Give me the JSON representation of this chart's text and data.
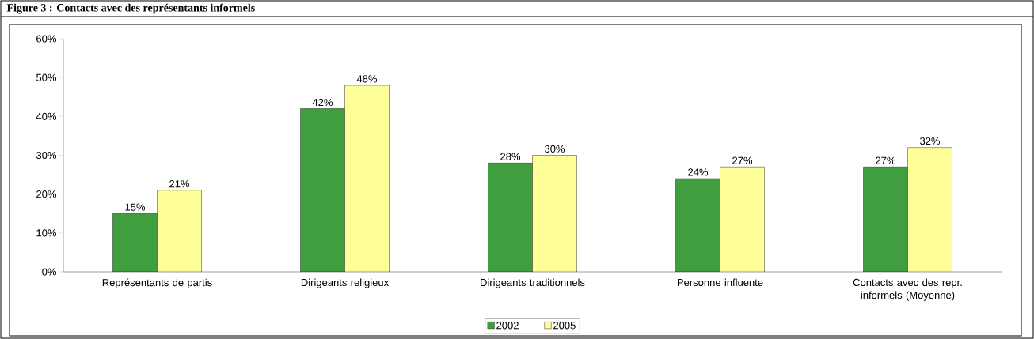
{
  "chart_data": {
    "type": "bar",
    "title": "Figure 3 : Contacts avec des représentants informels",
    "categories": [
      "Représentants de partis",
      "Dirigeants religieux",
      "Dirigeants traditionnels",
      "Personne influente",
      "Contacts avec des repr. informels (Moyenne)"
    ],
    "series": [
      {
        "name": "2002",
        "color": "#3f9f3f",
        "values": [
          15,
          42,
          28,
          24,
          27
        ],
        "value_labels": [
          "15%",
          "42%",
          "28%",
          "24%",
          "27%"
        ]
      },
      {
        "name": "2005",
        "color": "#ffff99",
        "values": [
          21,
          48,
          30,
          27,
          32
        ],
        "value_labels": [
          "21%",
          "48%",
          "30%",
          "27%",
          "32%"
        ]
      }
    ],
    "ylim": [
      0,
      60
    ],
    "yticks": [
      {
        "value": 0,
        "label": "0%"
      },
      {
        "value": 10,
        "label": "10%"
      },
      {
        "value": 20,
        "label": "20%"
      },
      {
        "value": 30,
        "label": "30%"
      },
      {
        "value": 40,
        "label": "40%"
      },
      {
        "value": 50,
        "label": "50%"
      },
      {
        "value": 60,
        "label": "60%"
      }
    ],
    "grid": false,
    "legend": "bottom"
  }
}
